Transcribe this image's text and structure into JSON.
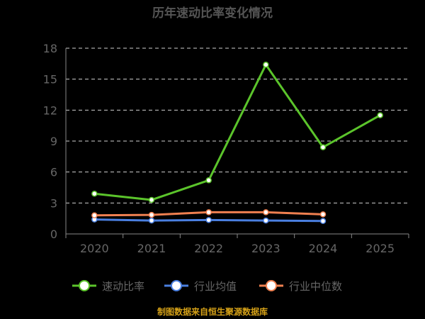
{
  "chart_data": {
    "type": "line",
    "title": "历年速动比率变化情况",
    "categories": [
      "2020",
      "2021",
      "2022",
      "2023",
      "2024",
      "2025"
    ],
    "ylim": [
      0,
      18
    ],
    "yticks": [
      "0",
      "3",
      "6",
      "9",
      "12",
      "15",
      "18"
    ],
    "grid": true,
    "legend_position": "bottom",
    "series": [
      {
        "name": "速动比率",
        "color": "#5bc42b",
        "values": [
          3.9,
          3.3,
          5.2,
          16.4,
          8.4,
          11.5
        ]
      },
      {
        "name": "行业均值",
        "color": "#4a7fe0",
        "values": [
          1.4,
          1.3,
          1.35,
          1.3,
          1.25,
          null
        ]
      },
      {
        "name": "行业中位数",
        "color": "#f08050",
        "values": [
          1.8,
          1.85,
          2.1,
          2.1,
          1.9,
          null
        ]
      }
    ],
    "source": "制图数据来自恒生聚源数据库"
  }
}
